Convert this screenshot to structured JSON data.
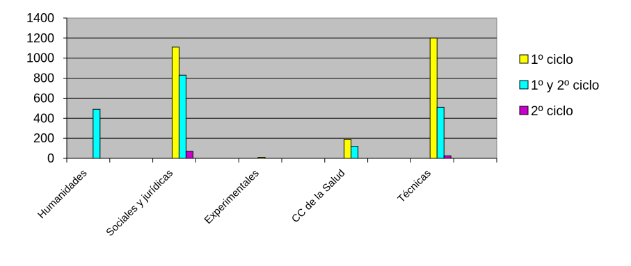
{
  "chart_data": {
    "type": "bar",
    "title": "",
    "xlabel": "",
    "ylabel": "",
    "categories": [
      "Humanidades",
      "Sociales y jurídicas",
      "Experimentales",
      "CC de la Salud",
      "Técnicas"
    ],
    "series": [
      {
        "name": "1º ciclo",
        "color": "#ffff00",
        "values": [
          0,
          1110,
          10,
          190,
          1200
        ]
      },
      {
        "name": "1º y 2º ciclo",
        "color": "#00ffff",
        "values": [
          490,
          830,
          0,
          120,
          510
        ]
      },
      {
        "name": "2º ciclo",
        "color": "#cc00cc",
        "values": [
          0,
          70,
          0,
          0,
          25
        ]
      }
    ],
    "ylim": [
      0,
      1400
    ],
    "yticks": [
      0,
      200,
      400,
      600,
      800,
      1000,
      1200,
      1400
    ],
    "grid": true,
    "legend": "right",
    "plot_background": "#c0c0c0"
  }
}
